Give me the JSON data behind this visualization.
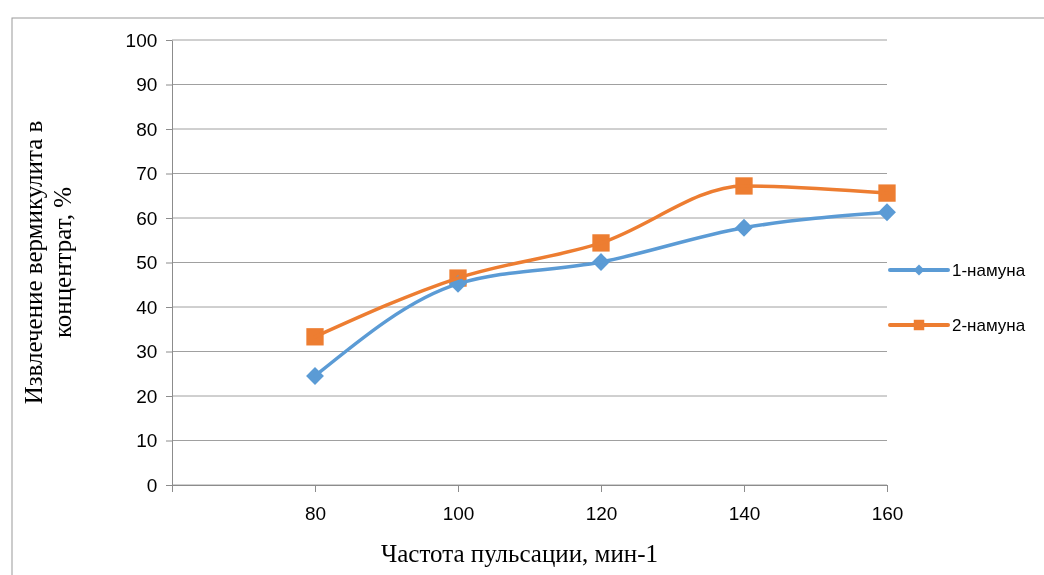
{
  "chart_data": {
    "type": "line",
    "xlabel": "Частота пульсации, мин-1",
    "ylabel": "Извлечение вермикулита в концентрат, %",
    "x": [
      80,
      100,
      120,
      140,
      160
    ],
    "series": [
      {
        "name": "1-намуна",
        "color": "#5b9bd5",
        "marker": "diamond",
        "values": [
          24.5,
          45.2,
          50.1,
          57.8,
          61.3
        ]
      },
      {
        "name": "2-намуна",
        "color": "#ed7d31",
        "marker": "square",
        "values": [
          33.3,
          46.5,
          54.4,
          67.2,
          65.6
        ]
      }
    ],
    "xlim": [
      60,
      160
    ],
    "xticks": [
      {
        "value": 60,
        "label": null
      },
      80,
      100,
      120,
      140,
      160
    ],
    "ylim": [
      0,
      100
    ],
    "yticks": [
      0,
      10,
      20,
      30,
      40,
      50,
      60,
      70,
      80,
      90,
      100
    ],
    "grid": "y",
    "legend": "right"
  }
}
